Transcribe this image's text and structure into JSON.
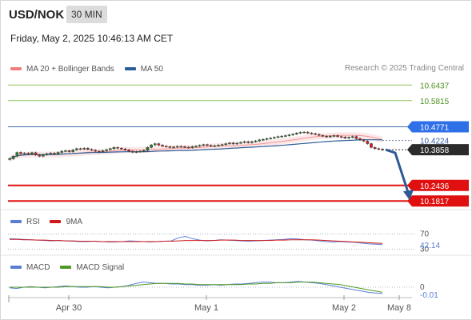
{
  "header": {
    "symbol": "USD/NOK",
    "interval": "30 MIN",
    "datetime": "Friday, May 2, 2025 10:46:13 AM CET",
    "credit": "Research © 2025 Trading Central"
  },
  "colors": {
    "bollinger": "#f08080",
    "ma50": "#2c5d99",
    "resistance": "#8fc15e",
    "support": "#e01010",
    "pivot": "#3f6fa8",
    "current": "#2b2b2b",
    "last_price": "#2f6fe8",
    "rsi": "#5b7fd6",
    "ma9": "#d0191b",
    "macd": "#5b7fd6",
    "macd_signal": "#4f9a22",
    "arrow": "#2d5a95"
  },
  "chart_data": [
    {
      "type": "candlestick",
      "legend": [
        {
          "label": "MA 20 + Bollinger Bands",
          "color": "#f08080"
        },
        {
          "label": "MA 50",
          "color": "#2c5d99"
        }
      ],
      "x_ticks": [
        "Apr 30",
        "May 1",
        "May 2",
        "May 8"
      ],
      "ylim": [
        10.16,
        10.67
      ],
      "levels": [
        {
          "value": 10.6437,
          "label": "10.6437",
          "kind": "resistance"
        },
        {
          "value": 10.5815,
          "label": "10.5815",
          "kind": "resistance"
        },
        {
          "value": 10.4771,
          "label": "10.4771",
          "kind": "pivot"
        },
        {
          "value": 10.4224,
          "label": "10.4224",
          "kind": "last"
        },
        {
          "value": 10.3858,
          "label": "10.3858",
          "kind": "current"
        },
        {
          "value": 10.2436,
          "label": "10.2436",
          "kind": "support"
        },
        {
          "value": 10.1817,
          "label": "10.1817",
          "kind": "support"
        }
      ],
      "close_series": [
        10.35,
        10.36,
        10.375,
        10.37,
        10.372,
        10.368,
        10.374,
        10.365,
        10.36,
        10.366,
        10.37,
        10.372,
        10.368,
        10.375,
        10.38,
        10.382,
        10.378,
        10.385,
        10.39,
        10.388,
        10.392,
        10.387,
        10.384,
        10.38,
        10.378,
        10.382,
        10.386,
        10.39,
        10.395,
        10.392,
        10.389,
        10.385,
        10.38,
        10.376,
        10.378,
        10.38,
        10.383,
        10.395,
        10.405,
        10.41,
        10.404,
        10.4,
        10.398,
        10.395,
        10.397,
        10.399,
        10.398,
        10.396,
        10.394,
        10.398,
        10.4,
        10.403,
        10.406,
        10.403,
        10.4,
        10.402,
        10.404,
        10.406,
        10.41,
        10.413,
        10.409,
        10.412,
        10.415,
        10.418,
        10.414,
        10.418,
        10.421,
        10.425,
        10.427,
        10.43,
        10.432,
        10.435,
        10.438,
        10.44,
        10.442,
        10.445,
        10.448,
        10.452,
        10.455,
        10.456,
        10.452,
        10.45,
        10.447,
        10.443,
        10.44,
        10.437,
        10.44,
        10.442,
        10.438,
        10.436,
        10.432,
        10.435,
        10.438,
        10.43,
        10.425,
        10.42,
        10.41,
        10.395,
        10.39,
        10.388,
        10.386
      ],
      "projection": {
        "from": 10.386,
        "to": 10.1817
      }
    },
    {
      "type": "line",
      "legend": [
        {
          "label": "RSI",
          "color": "#5b7fd6"
        },
        {
          "label": "9MA",
          "color": "#d0191b"
        }
      ],
      "levels": [
        70,
        30
      ],
      "level_labels": [
        "70",
        "30"
      ],
      "last_value_label": "42.14",
      "ylim": [
        20,
        80
      ],
      "series": [
        {
          "name": "RSI",
          "values": [
            58,
            57,
            56,
            55,
            54,
            53,
            52,
            53,
            52,
            51,
            50,
            50,
            51,
            50,
            49,
            49,
            50,
            52,
            51,
            50,
            49,
            50,
            51,
            52,
            60,
            64,
            58,
            54,
            52,
            53,
            55,
            54,
            53,
            52,
            51,
            52,
            53,
            54,
            55,
            56,
            58,
            57,
            55,
            54,
            52,
            50,
            49,
            50,
            49,
            48,
            46,
            44,
            43,
            42.14
          ]
        },
        {
          "name": "9MA",
          "values": [
            56,
            56,
            55,
            55,
            54,
            54,
            53,
            53,
            52,
            52,
            51,
            51,
            51,
            50,
            50,
            50,
            50,
            50,
            50,
            50,
            50,
            50,
            51,
            51,
            52,
            53,
            53,
            53,
            53,
            53,
            54,
            54,
            54,
            53,
            53,
            53,
            53,
            53,
            54,
            54,
            55,
            55,
            55,
            55,
            54,
            53,
            52,
            51,
            50,
            49,
            48,
            47,
            46,
            45
          ]
        }
      ]
    },
    {
      "type": "line",
      "legend": [
        {
          "label": "MACD",
          "color": "#5b7fd6"
        },
        {
          "label": "MACD Signal",
          "color": "#4f9a22"
        }
      ],
      "zero_label": "0",
      "last_value_label": "-0.01",
      "ylim": [
        -0.02,
        0.02
      ],
      "series": [
        {
          "name": "MACD",
          "values": [
            -0.001,
            -0.002,
            0.0,
            0.001,
            0.0,
            -0.001,
            0.0,
            0.001,
            0.002,
            0.001,
            0.0,
            0.0,
            0.001,
            0.0,
            -0.001,
            0.0,
            0.001,
            0.003,
            0.006,
            0.008,
            0.007,
            0.006,
            0.006,
            0.005,
            0.005,
            0.004,
            0.004,
            0.003,
            0.003,
            0.004,
            0.003,
            0.004,
            0.005,
            0.005,
            0.006,
            0.007,
            0.008,
            0.008,
            0.007,
            0.007,
            0.008,
            0.009,
            0.008,
            0.007,
            0.006,
            0.004,
            0.002,
            0.0,
            -0.002,
            -0.004,
            -0.006,
            -0.008,
            -0.009,
            -0.01
          ]
        },
        {
          "name": "MACD Signal",
          "values": [
            0.0,
            0.0,
            0.0,
            0.0,
            0.0,
            0.0,
            0.0,
            0.0,
            0.001,
            0.001,
            0.001,
            0.001,
            0.001,
            0.001,
            0.0,
            0.0,
            0.001,
            0.002,
            0.003,
            0.004,
            0.005,
            0.006,
            0.006,
            0.006,
            0.006,
            0.005,
            0.005,
            0.004,
            0.004,
            0.004,
            0.004,
            0.004,
            0.004,
            0.004,
            0.005,
            0.005,
            0.006,
            0.006,
            0.007,
            0.007,
            0.007,
            0.008,
            0.008,
            0.008,
            0.007,
            0.006,
            0.005,
            0.004,
            0.002,
            0.0,
            -0.002,
            -0.004,
            -0.006,
            -0.008
          ]
        }
      ]
    }
  ]
}
